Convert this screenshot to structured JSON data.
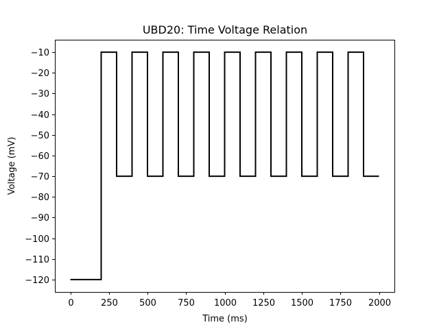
{
  "chart_data": {
    "type": "line",
    "title": "UBD20: Time Voltage Relation",
    "xlabel": "Time (ms)",
    "ylabel": "Voltage (mV)",
    "xlim": [
      -100,
      2100
    ],
    "ylim": [
      -126,
      -4
    ],
    "xticks": [
      0,
      250,
      500,
      750,
      1000,
      1250,
      1500,
      1750,
      2000
    ],
    "yticks": [
      -10,
      -20,
      -30,
      -40,
      -50,
      -60,
      -70,
      -80,
      -90,
      -100,
      -110,
      -120
    ],
    "grid": false,
    "series": [
      {
        "color": "#000000",
        "step": "post",
        "x": [
          0,
          200,
          300,
          400,
          500,
          600,
          700,
          800,
          900,
          1000,
          1100,
          1200,
          1300,
          1400,
          1500,
          1600,
          1700,
          1800,
          1900,
          2000
        ],
        "y": [
          -120,
          -10,
          -70,
          -10,
          -70,
          -10,
          -70,
          -10,
          -70,
          -10,
          -70,
          -10,
          -70,
          -10,
          -70,
          -10,
          -70,
          -10,
          -70,
          -70
        ]
      }
    ]
  }
}
